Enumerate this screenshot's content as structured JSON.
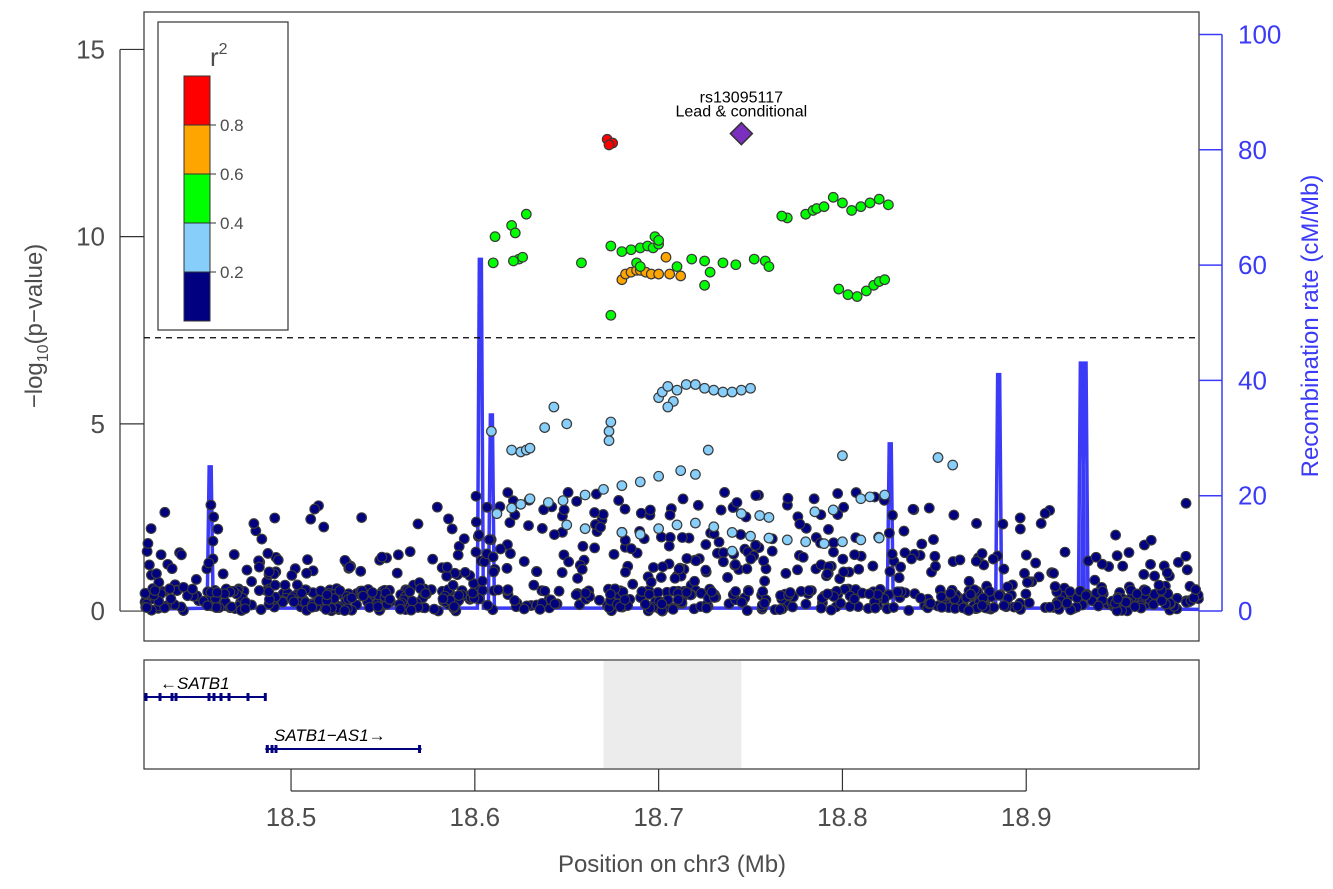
{
  "chart_data": {
    "type": "scatter",
    "xlabel": "Position on chr3 (Mb)",
    "ylabel_parts": [
      "−log",
      "10",
      "(p−value)"
    ],
    "ylabel_right": "Recombination rate (cM/Mb)",
    "xlim": [
      18.42,
      18.994
    ],
    "ylim": [
      -0.8,
      16.0
    ],
    "ylim_right": [
      0,
      100
    ],
    "x_ticks": [
      "18.5",
      "18.6",
      "18.7",
      "18.8",
      "18.9"
    ],
    "x_tick_values": [
      18.5,
      18.6,
      18.7,
      18.8,
      18.9
    ],
    "y_ticks": [
      "0",
      "5",
      "10",
      "15"
    ],
    "y_tick_values": [
      0,
      5,
      10,
      15
    ],
    "y_right_ticks": [
      "0",
      "20",
      "40",
      "60",
      "80",
      "100"
    ],
    "y_right_tick_values": [
      0,
      20,
      40,
      60,
      80,
      100
    ],
    "significance_line": 7.3,
    "lead_snp": {
      "name": "rs13095117",
      "label": "Lead & conditional",
      "x": 18.745,
      "y": 12.75,
      "color": "#7b2fbe"
    },
    "legend": {
      "title": "r",
      "title_sup": "2",
      "bins": [
        {
          "color": "#ff0000"
        },
        {
          "color": "#ffa500"
        },
        {
          "color": "#00ff00"
        },
        {
          "color": "#87cefa"
        },
        {
          "color": "#000080"
        }
      ],
      "labels": [
        "0.8",
        "0.6",
        "0.4",
        "0.2"
      ]
    },
    "point_colors": {
      "red": "#ff0000",
      "orange": "#ffa500",
      "green": "#00ff00",
      "lightblue": "#87cefa",
      "navy": "#000080"
    },
    "points": {
      "red": [
        [
          18.672,
          12.6
        ],
        [
          18.675,
          12.5
        ],
        [
          18.673,
          12.45
        ]
      ],
      "green": [
        [
          18.611,
          10.0
        ],
        [
          18.61,
          9.3
        ],
        [
          18.62,
          10.3
        ],
        [
          18.622,
          10.1
        ],
        [
          18.624,
          9.4
        ],
        [
          18.628,
          10.6
        ],
        [
          18.621,
          9.35
        ],
        [
          18.626,
          9.45
        ],
        [
          18.658,
          9.3
        ],
        [
          18.674,
          7.9
        ],
        [
          18.674,
          9.75
        ],
        [
          18.68,
          9.6
        ],
        [
          18.685,
          9.65
        ],
        [
          18.69,
          9.7
        ],
        [
          18.694,
          9.75
        ],
        [
          18.697,
          9.7
        ],
        [
          18.7,
          9.8
        ],
        [
          18.698,
          10.0
        ],
        [
          18.7,
          9.9
        ],
        [
          18.688,
          9.3
        ],
        [
          18.69,
          9.2
        ],
        [
          18.71,
          9.2
        ],
        [
          18.718,
          9.4
        ],
        [
          18.725,
          9.35
        ],
        [
          18.728,
          9.05
        ],
        [
          18.725,
          8.7
        ],
        [
          18.735,
          9.3
        ],
        [
          18.742,
          9.25
        ],
        [
          18.752,
          9.4
        ],
        [
          18.758,
          9.35
        ],
        [
          18.76,
          9.2
        ],
        [
          18.77,
          10.5
        ],
        [
          18.767,
          10.55
        ],
        [
          18.78,
          10.6
        ],
        [
          18.784,
          10.7
        ],
        [
          18.786,
          10.75
        ],
        [
          18.79,
          10.8
        ],
        [
          18.795,
          11.05
        ],
        [
          18.8,
          10.9
        ],
        [
          18.805,
          10.7
        ],
        [
          18.81,
          10.8
        ],
        [
          18.815,
          10.9
        ],
        [
          18.82,
          11.0
        ],
        [
          18.825,
          10.85
        ],
        [
          18.798,
          8.6
        ],
        [
          18.803,
          8.45
        ],
        [
          18.808,
          8.4
        ],
        [
          18.813,
          8.55
        ],
        [
          18.817,
          8.7
        ],
        [
          18.82,
          8.8
        ],
        [
          18.823,
          8.85
        ]
      ],
      "orange": [
        [
          18.68,
          8.85
        ],
        [
          18.682,
          9.0
        ],
        [
          18.685,
          9.05
        ],
        [
          18.688,
          9.1
        ],
        [
          18.69,
          9.1
        ],
        [
          18.693,
          9.05
        ],
        [
          18.696,
          9.0
        ],
        [
          18.7,
          9.0
        ],
        [
          18.704,
          9.45
        ],
        [
          18.706,
          9.0
        ],
        [
          18.712,
          8.95
        ]
      ],
      "lightblue": [
        [
          18.609,
          4.8
        ],
        [
          18.62,
          4.3
        ],
        [
          18.625,
          4.25
        ],
        [
          18.628,
          4.3
        ],
        [
          18.63,
          4.35
        ],
        [
          18.638,
          4.9
        ],
        [
          18.643,
          5.45
        ],
        [
          18.65,
          5.0
        ],
        [
          18.673,
          4.8
        ],
        [
          18.673,
          4.55
        ],
        [
          18.674,
          5.05
        ],
        [
          18.7,
          5.7
        ],
        [
          18.702,
          5.85
        ],
        [
          18.705,
          6.0
        ],
        [
          18.71,
          5.9
        ],
        [
          18.715,
          6.05
        ],
        [
          18.72,
          6.05
        ],
        [
          18.725,
          5.95
        ],
        [
          18.73,
          5.9
        ],
        [
          18.735,
          5.85
        ],
        [
          18.74,
          5.85
        ],
        [
          18.745,
          5.9
        ],
        [
          18.75,
          5.95
        ],
        [
          18.708,
          5.6
        ],
        [
          18.705,
          5.45
        ],
        [
          18.727,
          4.3
        ],
        [
          18.612,
          2.6
        ],
        [
          18.62,
          2.75
        ],
        [
          18.625,
          2.85
        ],
        [
          18.63,
          3.0
        ],
        [
          18.64,
          2.9
        ],
        [
          18.648,
          2.95
        ],
        [
          18.66,
          3.1
        ],
        [
          18.67,
          3.25
        ],
        [
          18.68,
          3.35
        ],
        [
          18.69,
          3.45
        ],
        [
          18.7,
          3.6
        ],
        [
          18.712,
          3.75
        ],
        [
          18.72,
          3.65
        ],
        [
          18.7,
          2.2
        ],
        [
          18.71,
          2.3
        ],
        [
          18.72,
          2.35
        ],
        [
          18.73,
          2.25
        ],
        [
          18.74,
          2.1
        ],
        [
          18.75,
          2.0
        ],
        [
          18.76,
          1.95
        ],
        [
          18.77,
          1.9
        ],
        [
          18.78,
          1.85
        ],
        [
          18.79,
          1.8
        ],
        [
          18.8,
          1.85
        ],
        [
          18.81,
          1.9
        ],
        [
          18.82,
          1.95
        ],
        [
          18.745,
          2.6
        ],
        [
          18.755,
          2.55
        ],
        [
          18.76,
          2.5
        ],
        [
          18.785,
          2.65
        ],
        [
          18.795,
          2.7
        ],
        [
          18.81,
          3.0
        ],
        [
          18.815,
          3.05
        ],
        [
          18.823,
          3.1
        ],
        [
          18.8,
          4.15
        ],
        [
          18.852,
          4.1
        ],
        [
          18.86,
          3.9
        ],
        [
          18.74,
          1.6
        ],
        [
          18.65,
          2.3
        ],
        [
          18.66,
          2.2
        ],
        [
          18.68,
          2.1
        ],
        [
          18.69,
          2.05
        ]
      ],
      "navy_seed": 7,
      "navy_count": 900
    },
    "recomb_peaks": [
      [
        18.456,
        25
      ],
      [
        18.603,
        61
      ],
      [
        18.609,
        34
      ],
      [
        18.826,
        29
      ],
      [
        18.885,
        41
      ],
      [
        18.93,
        43
      ],
      [
        18.932,
        43
      ]
    ]
  },
  "genes": [
    {
      "name": "SATB1",
      "label": "←SATB1",
      "start": 18.42,
      "end": 18.486,
      "row": 0
    },
    {
      "name": "SATB1-AS1",
      "label": "SATB1−AS1→",
      "start": 18.486,
      "end": 18.571,
      "row": 1
    }
  ],
  "highlight_region": [
    18.67,
    18.745
  ],
  "colors": {
    "recomb_line": "#3b3bf7",
    "axis_text": "#4d4d4d",
    "gene": "#000080",
    "highlight": "#ececec"
  }
}
